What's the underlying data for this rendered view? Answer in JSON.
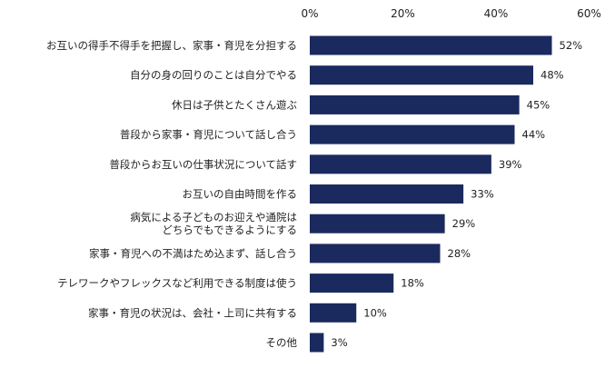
{
  "chart_data": {
    "type": "bar",
    "orientation": "horizontal",
    "categories": [
      [
        "お互いの得手不得手を把握し、家事・育児を分担する"
      ],
      [
        "自分の身の回りのことは自分でやる"
      ],
      [
        "休日は子供とたくさん遊ぶ"
      ],
      [
        "普段から家事・育児について話し合う"
      ],
      [
        "普段からお互いの仕事状況について話す"
      ],
      [
        "お互いの自由時間を作る"
      ],
      [
        "病気による子どものお迎えや通院は",
        "どちらでもできるようにする"
      ],
      [
        "家事・育児への不満はため込まず、話し合う"
      ],
      [
        "テレワークやフレックスなど利用できる制度は使う"
      ],
      [
        "家事・育児の状況は、会社・上司に共有する"
      ],
      [
        "その他"
      ]
    ],
    "values": [
      52,
      48,
      45,
      44,
      39,
      33,
      29,
      28,
      18,
      10,
      3
    ],
    "value_labels": [
      "52%",
      "48%",
      "45%",
      "44%",
      "39%",
      "33%",
      "29%",
      "28%",
      "18%",
      "10%",
      "3%"
    ],
    "x_ticks": [
      0,
      20,
      40,
      60
    ],
    "x_tick_labels": [
      "0%",
      "20%",
      "40%",
      "60%"
    ],
    "xlim": [
      0,
      60
    ],
    "grid": false,
    "legend": "none",
    "bar_color": "#1b2a5e"
  }
}
